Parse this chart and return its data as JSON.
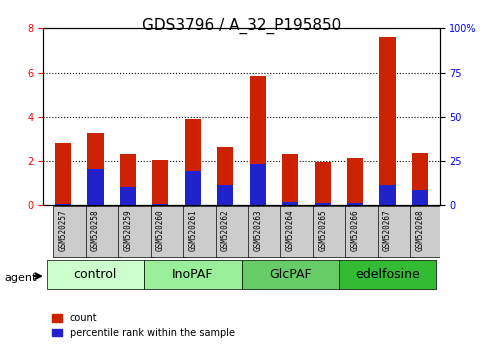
{
  "title": "GDS3796 / A_32_P195850",
  "samples": [
    "GSM520257",
    "GSM520258",
    "GSM520259",
    "GSM520260",
    "GSM520261",
    "GSM520262",
    "GSM520263",
    "GSM520264",
    "GSM520265",
    "GSM520266",
    "GSM520267",
    "GSM520268"
  ],
  "count_values": [
    2.8,
    3.25,
    2.3,
    2.05,
    3.9,
    2.65,
    5.85,
    2.3,
    1.97,
    2.15,
    7.6,
    2.35
  ],
  "percentile_values": [
    0.05,
    1.65,
    0.82,
    0.07,
    1.55,
    0.93,
    1.85,
    0.13,
    0.1,
    0.12,
    0.9,
    0.68
  ],
  "groups": [
    {
      "label": "control",
      "start": 0,
      "end": 3,
      "color": "#ccffcc"
    },
    {
      "label": "InoPAF",
      "start": 3,
      "end": 6,
      "color": "#99ee99"
    },
    {
      "label": "GlcPAF",
      "start": 6,
      "end": 9,
      "color": "#66dd66"
    },
    {
      "label": "edelfosine",
      "start": 9,
      "end": 12,
      "color": "#33cc33"
    }
  ],
  "bar_color_red": "#cc2200",
  "bar_color_blue": "#2222cc",
  "bar_width": 0.5,
  "ylim_left": [
    0,
    8
  ],
  "ylim_right": [
    0,
    100
  ],
  "yticks_left": [
    0,
    2,
    4,
    6,
    8
  ],
  "yticks_right": [
    0,
    25,
    50,
    75,
    100
  ],
  "ytick_labels_right": [
    "0",
    "25",
    "50",
    "75",
    "100%"
  ],
  "xlabel": "",
  "ylabel_left": "",
  "ylabel_right": "",
  "agent_label": "agent",
  "legend_count": "count",
  "legend_percentile": "percentile rank within the sample",
  "background_color": "#e8e8e8",
  "plot_bg_color": "#e8e8e8",
  "grid_color": "black",
  "title_fontsize": 11,
  "tick_fontsize": 7,
  "group_fontsize": 9
}
